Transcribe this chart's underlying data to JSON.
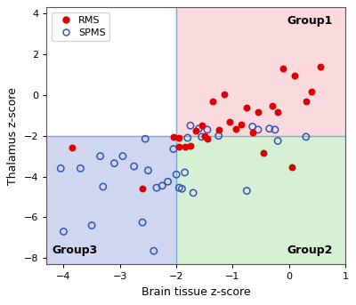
{
  "rms_x": [
    -3.85,
    -2.05,
    -2.6,
    -1.95,
    -1.95,
    -1.85,
    -1.75,
    -1.65,
    -1.55,
    -1.5,
    -1.45,
    -1.35,
    -1.25,
    -1.15,
    -1.05,
    -0.95,
    -0.85,
    -0.75,
    -0.65,
    -0.55,
    -0.45,
    -0.3,
    -0.2,
    -0.1,
    0.05,
    0.1,
    0.3,
    0.4,
    0.55
  ],
  "rms_y": [
    -2.6,
    -2.05,
    -4.6,
    -2.1,
    -2.55,
    -2.55,
    -2.5,
    -1.75,
    -1.5,
    -2.0,
    -2.15,
    -0.3,
    -1.7,
    0.05,
    -1.3,
    -1.65,
    -1.45,
    -0.6,
    -1.85,
    -0.85,
    -2.85,
    -0.55,
    -0.85,
    1.3,
    -3.55,
    0.95,
    -0.3,
    0.15,
    1.4
  ],
  "spms_x": [
    -4.05,
    -4.0,
    -3.7,
    -3.5,
    -3.35,
    -3.3,
    -3.1,
    -2.95,
    -2.75,
    -2.6,
    -2.55,
    -2.5,
    -2.4,
    -2.35,
    -2.25,
    -2.15,
    -2.05,
    -2.0,
    -1.95,
    -1.9,
    -1.85,
    -1.8,
    -1.75,
    -1.7,
    -1.6,
    -1.55,
    -1.45,
    -1.25,
    -0.75,
    -0.65,
    -0.55,
    -0.35,
    -0.25,
    -0.2,
    0.3
  ],
  "spms_y": [
    -3.6,
    -6.7,
    -3.6,
    -6.4,
    -3.0,
    -4.5,
    -3.35,
    -3.0,
    -3.5,
    -6.25,
    -2.15,
    -3.7,
    -7.65,
    -4.55,
    -4.45,
    -4.25,
    -2.65,
    -3.9,
    -4.55,
    -4.6,
    -3.8,
    -2.1,
    -1.5,
    -4.8,
    -1.65,
    -2.05,
    -1.7,
    -2.0,
    -4.7,
    -1.55,
    -1.7,
    -1.65,
    -1.7,
    -2.25,
    -2.05
  ],
  "xlim": [
    -4.3,
    1.0
  ],
  "ylim": [
    -8.3,
    4.3
  ],
  "xticks": [
    -4,
    -3,
    -2,
    -1,
    0,
    1
  ],
  "yticks": [
    -8,
    -6,
    -4,
    -2,
    0,
    2,
    4
  ],
  "xlabel": "Brain tissue z-score",
  "ylabel": "Thalamus z-score",
  "vline_x": -2.0,
  "hline_y": -2.0,
  "group1_label": "Group1",
  "group2_label": "Group2",
  "group3_label": "Group3",
  "bg_color_upper_right": "#fadadd",
  "bg_color_lower_right": "#d5f0d5",
  "bg_color_lower_left": "#d0d5f0",
  "divider_color": "#7aadcc",
  "rms_color": "#dd0000",
  "spms_color": "#3355bb",
  "fig_width": 4.0,
  "fig_height": 3.43,
  "dpi": 100
}
